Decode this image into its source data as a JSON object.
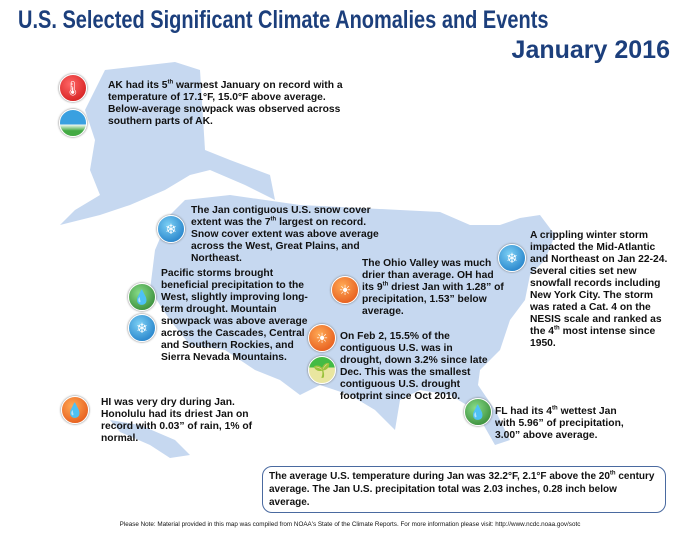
{
  "title": {
    "line1": "U.S. Selected Significant Climate Anomalies and Events",
    "line2": "January 2016"
  },
  "colors": {
    "land": "#c6d8f0",
    "title": "#1c3f7c"
  },
  "events": {
    "alaska": {
      "icons": [
        "hot-thermometer-icon",
        "low-snowpack-icon"
      ],
      "a": "AK had its 5",
      "sup": "th",
      "b": " warmest January on record with a temperature of 17.1°F, 15.0°F above average. Below-average snowpack was observed across southern parts of AK."
    },
    "snow_cover": {
      "icons": [
        "snow-cover-icon"
      ],
      "a": "The Jan contiguous U.S. snow cover extent was the 7",
      "sup": "th",
      "b": " largest on record. Snow cover extent was above average across the West, Great Plains, and Northeast."
    },
    "pacific": {
      "icons": [
        "rain-icon",
        "snowpack-icon"
      ],
      "text": "Pacific storms brought beneficial precipitation to the West, slightly improving long-term drought. Mountain snowpack was above average across the Cascades, Central and Southern Rockies, and Sierra Nevada Mountains."
    },
    "ohio": {
      "icons": [
        "dry-icon"
      ],
      "a": "The Ohio Valley was much drier than average. OH had its 9",
      "sup": "th",
      "b": " driest Jan with 1.28” of precipitation, 1.53” below average."
    },
    "drought": {
      "icons": [
        "drought-icon",
        "drought-improvement-icon"
      ],
      "text": "On Feb 2, 15.5% of the contiguous U.S. was in drought, down 3.2% since late Dec. This was the smallest contiguous U.S. drought footprint since Oct 2010."
    },
    "storm": {
      "icons": [
        "snowflake-icon"
      ],
      "a": "A crippling winter storm impacted the Mid-Atlantic and Northeast on Jan 22-24. Several cities set new snowfall records including New York City. The storm was rated a Cat. 4 on the NESIS scale and ranked as the 4",
      "sup": "th",
      "b": " most intense since 1950."
    },
    "hawaii": {
      "icons": [
        "dry-icon"
      ],
      "text": "HI was very dry during Jan. Honolulu had its driest Jan on record with 0.03” of rain, 1% of normal."
    },
    "florida": {
      "icons": [
        "rain-icon"
      ],
      "a": "FL had its 4",
      "sup": "th",
      "b": " wettest Jan with 5.96” of precipitation, 3.00” above average."
    }
  },
  "summary": {
    "a": "The average U.S. temperature during Jan was 32.2°F, 2.1°F above the 20",
    "sup": "th",
    "b": " century average. The Jan U.S. precipitation total was 2.03 inches, 0.28 inch below average."
  },
  "note": "Please Note: Material provided in this map was compiled from NOAA's State of the Climate Reports. For more information please visit: http://www.ncdc.noaa.gov/sotc"
}
